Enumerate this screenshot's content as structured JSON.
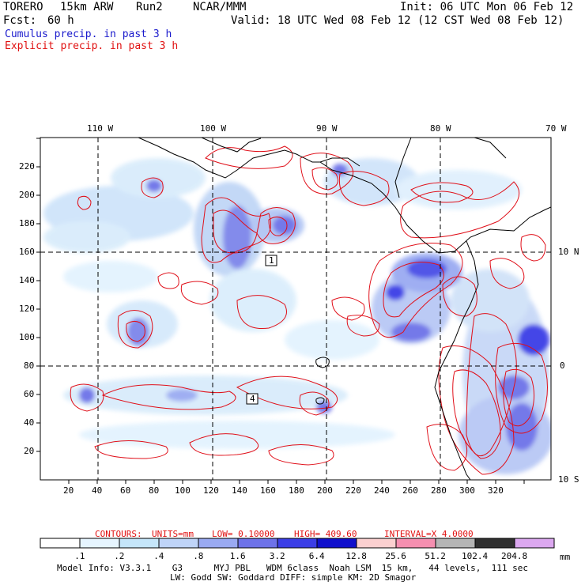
{
  "header": {
    "model": "TORERO",
    "resolution": "15km ARW",
    "run": "Run2",
    "center": "NCAR/MMM",
    "init": "Init: 06 UTC Mon 06 Feb 12",
    "fcst_label": "Fcst:",
    "fcst_value": "60 h",
    "valid": "Valid: 18 UTC Wed 08 Feb 12 (12 CST Wed 08 Feb 12)"
  },
  "fields": {
    "filled": "Cumulus precip. in past 3 h",
    "contour": "Explicit precip. in past 3 h"
  },
  "colors": {
    "filled_title": "#1a1acc",
    "contour_title": "#e01010",
    "contour_line": "#e0101a",
    "coast": "#000000",
    "grid": "#000000"
  },
  "map": {
    "top_lon_labels": [
      "110 W",
      "100 W",
      "90 W",
      "80 W",
      "70 W"
    ],
    "right_lat_labels": [
      "10 N",
      "0",
      "10 S"
    ],
    "x_ticks": [
      "20",
      "40",
      "60",
      "80",
      "100",
      "120",
      "140",
      "160",
      "180",
      "200",
      "220",
      "240",
      "260",
      "280",
      "300",
      "320"
    ],
    "y_ticks": [
      "20",
      "40",
      "60",
      "80",
      "100",
      "120",
      "140",
      "160",
      "180",
      "200",
      "220"
    ],
    "annotations": [
      {
        "text": "1"
      },
      {
        "text": "4"
      }
    ]
  },
  "contour_info": {
    "label": "CONTOURS:",
    "units": "UNITS=mm",
    "low": "LOW= 0.10000",
    "high": "HIGH= 409.60",
    "interval": "INTERVAL=X 4.0000"
  },
  "colorbar": {
    "unit": "mm",
    "labels": [
      ".1",
      ".2",
      ".4",
      ".8",
      "1.6",
      "3.2",
      "6.4",
      "12.8",
      "25.6",
      "51.2",
      "102.4",
      "204.8"
    ],
    "colors": [
      "#ffffff",
      "#e6f5ff",
      "#c5e6fa",
      "#bfd4f8",
      "#9aaaf2",
      "#6d72e8",
      "#3b3ee6",
      "#1010cc",
      "#fbd0d0",
      "#f58fb0",
      "#b5b5b5",
      "#303030",
      "#dca8f0"
    ]
  },
  "footer": {
    "line1": "Model Info: V3.3.1    G3      MYJ PBL   WDM 6class  Noah LSM  15 km,   44 levels,  111 sec",
    "line2": "LW: Godd SW: Goddard DIFF: simple KM: 2D Smagor"
  }
}
